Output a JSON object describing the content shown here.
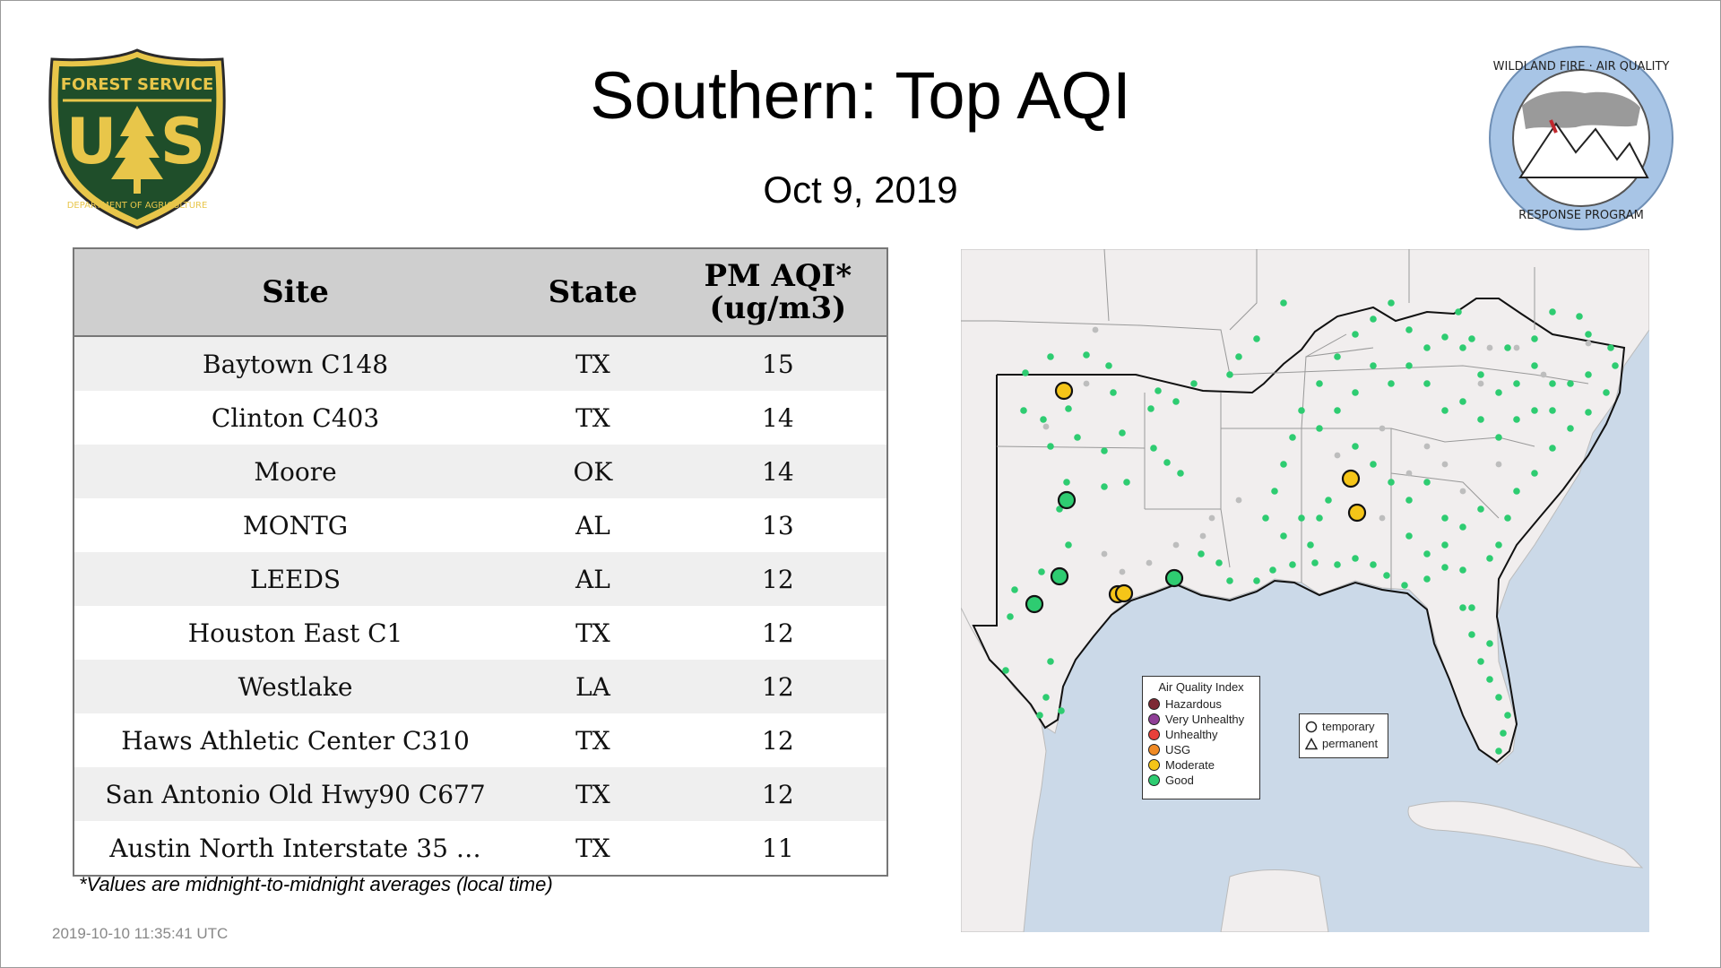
{
  "title": "Southern: Top AQI",
  "date": "Oct  9, 2019",
  "logos": {
    "usfs": {
      "top_text": "FOREST SERVICE",
      "bottom_text": "DEPARTMENT OF AGRICULTURE",
      "letters": "U S"
    },
    "wfaq": {
      "top_text": "WILDLAND FIRE · AIR QUALITY",
      "bottom_text": "RESPONSE PROGRAM"
    }
  },
  "table": {
    "headers": {
      "site": "Site",
      "state": "State",
      "aqi_line1": "PM AQI*",
      "aqi_line2": "(ug/m3)"
    },
    "rows": [
      {
        "site": "Baytown C148",
        "state": "TX",
        "aqi": "15"
      },
      {
        "site": "Clinton C403",
        "state": "TX",
        "aqi": "14"
      },
      {
        "site": "Moore",
        "state": "OK",
        "aqi": "14"
      },
      {
        "site": "MONTG",
        "state": "AL",
        "aqi": "13"
      },
      {
        "site": "LEEDS",
        "state": "AL",
        "aqi": "12"
      },
      {
        "site": "Houston East C1",
        "state": "TX",
        "aqi": "12"
      },
      {
        "site": "Westlake",
        "state": "LA",
        "aqi": "12"
      },
      {
        "site": "Haws Athletic Center C310",
        "state": "TX",
        "aqi": "12"
      },
      {
        "site": "San Antonio Old Hwy90 C677",
        "state": "TX",
        "aqi": "12"
      },
      {
        "site": "Austin North Interstate 35 …",
        "state": "TX",
        "aqi": "11"
      }
    ]
  },
  "footnote": "*Values are midnight-to-midnight averages (local time)",
  "timestamp": "2019-10-10 11:35:41 UTC",
  "legend": {
    "title": "Air Quality Index",
    "items": [
      {
        "label": "Hazardous",
        "color": "#7e2a35"
      },
      {
        "label": "Very Unhealthy",
        "color": "#8f3f97"
      },
      {
        "label": "Unhealthy",
        "color": "#e8403a"
      },
      {
        "label": "USG",
        "color": "#f08a24"
      },
      {
        "label": "Moderate",
        "color": "#f5c518"
      },
      {
        "label": "Good",
        "color": "#2ecc71"
      }
    ]
  },
  "legend_symbols": {
    "temporary": "temporary",
    "permanent": "permanent"
  },
  "colors": {
    "good": "#2ecc71",
    "moderate": "#f5c518",
    "ocean": "#cbd9e8",
    "land": "#f1eeee"
  }
}
